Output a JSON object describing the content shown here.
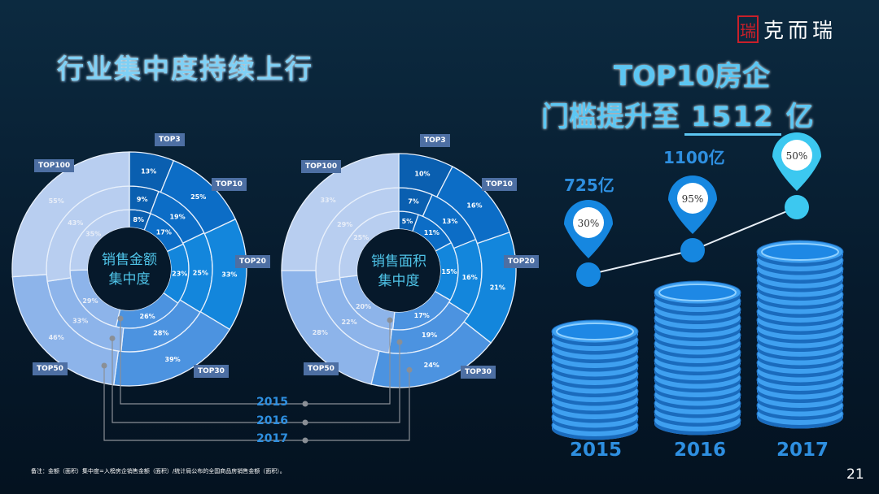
{
  "header": {
    "title": "行业集中度持续上行",
    "right_title_line1": "TOP10房企",
    "right_title_prefix": "门槛提升至",
    "right_title_value": "1512",
    "right_title_suffix": "亿",
    "logo_text": "克而瑞",
    "logo_seal": "瑞"
  },
  "colors": {
    "TOP3": "#0a5fb0",
    "TOP10": "#0c6dc6",
    "TOP20": "#1386dc",
    "TOP30": "#4c93e0",
    "TOP50": "#8db4ea",
    "TOP100": "#b8cef0",
    "accent": "#2e8fe0"
  },
  "chart_data": [
    {
      "type": "sunburst",
      "center_label": "销售金额\n集中度",
      "center_line1": "销售金额",
      "center_line2": "集中度",
      "categories": [
        "TOP3",
        "TOP10",
        "TOP20",
        "TOP30",
        "TOP50",
        "TOP100"
      ],
      "series": [
        {
          "name": "2015",
          "values": [
            8,
            17,
            23,
            26,
            29,
            35
          ]
        },
        {
          "name": "2016",
          "values": [
            9,
            19,
            25,
            28,
            33,
            43
          ]
        },
        {
          "name": "2017",
          "values": [
            13,
            25,
            33,
            39,
            46,
            55
          ]
        }
      ]
    },
    {
      "type": "sunburst",
      "center_line1": "销售面积",
      "center_line2": "集中度",
      "categories": [
        "TOP3",
        "TOP10",
        "TOP20",
        "TOP30",
        "TOP50",
        "TOP100"
      ],
      "series": [
        {
          "name": "2015",
          "values": [
            5,
            11,
            15,
            17,
            20,
            25
          ]
        },
        {
          "name": "2016",
          "values": [
            7,
            13,
            16,
            19,
            22,
            29
          ]
        },
        {
          "name": "2017",
          "values": [
            10,
            16,
            21,
            24,
            28,
            33
          ]
        }
      ]
    },
    {
      "type": "bar",
      "categories": [
        "2015",
        "2016",
        "2017"
      ],
      "values": [
        725,
        1100,
        1512
      ],
      "value_labels": [
        "725亿",
        "1100亿",
        ""
      ],
      "growth_labels": [
        "30%",
        "95%",
        "50%"
      ]
    }
  ],
  "legend": {
    "years": [
      "2015",
      "2016",
      "2017"
    ]
  },
  "footnote": "备注：金额（面积）集中度=入榜房企销售金额（面积）/统计局公布的全国商品房销售金额（面积）。",
  "page_number": "21"
}
